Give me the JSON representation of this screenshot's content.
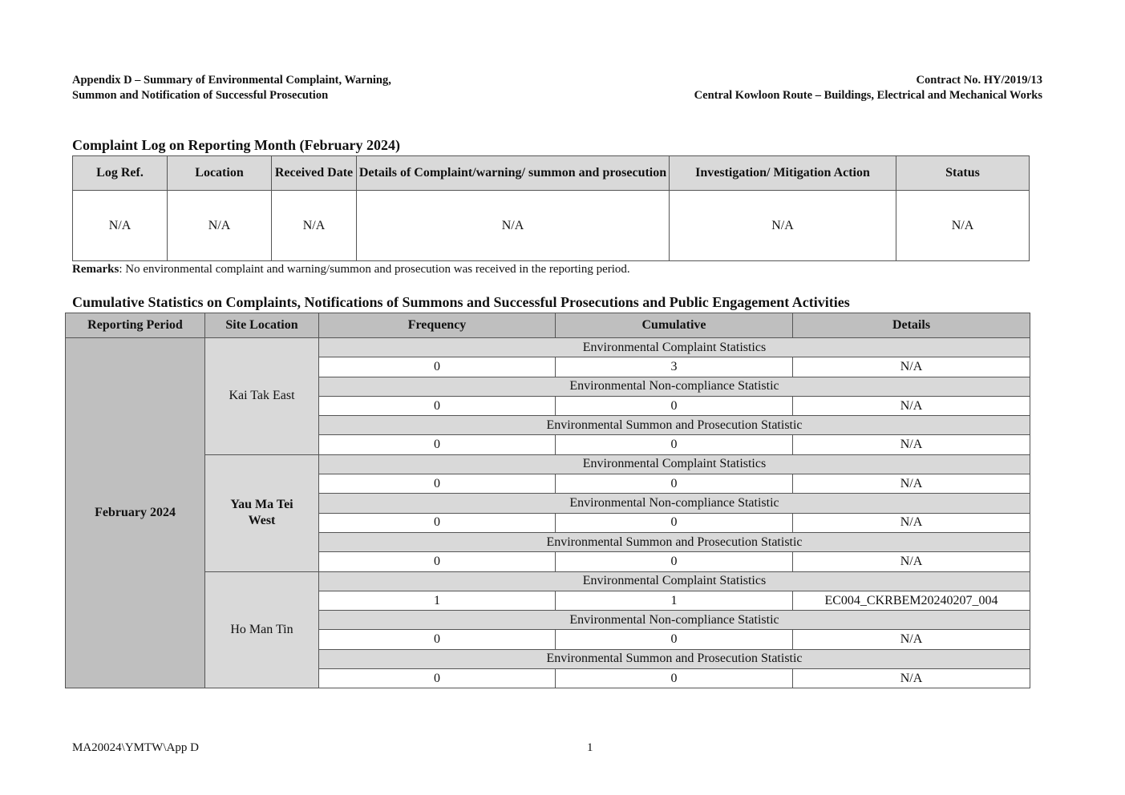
{
  "header": {
    "left_line1": "Appendix D – Summary of Environmental Complaint, Warning,",
    "left_line2": "Summon and Notification of Successful Prosecution",
    "right_line1": "Contract No. HY/2019/13",
    "right_line2": "Central Kowloon Route – Buildings, Electrical and Mechanical Works"
  },
  "complaint_log": {
    "title": "Complaint Log on Reporting Month (February 2024)",
    "columns": [
      "Log Ref.",
      "Location",
      "Received Date",
      "Details of Complaint/warning/ summon and prosecution",
      "Investigation/ Mitigation Action",
      "Status"
    ],
    "row": [
      "N/A",
      "N/A",
      "N/A",
      "N/A",
      "N/A",
      "N/A"
    ],
    "remarks_label": "Remarks",
    "remarks_text": ": No environmental complaint and warning/summon and prosecution was received in the reporting period."
  },
  "cumulative": {
    "title": "Cumulative Statistics on Complaints, Notifications of Summons and Successful Prosecutions and Public Engagement Activities",
    "columns": [
      "Reporting Period",
      "Site Location",
      "Frequency",
      "Cumulative",
      "Details"
    ],
    "period": "February 2024",
    "sites": [
      {
        "name": "Kai Tak East",
        "bold": false,
        "groups": [
          {
            "category": "Environmental Complaint Statistics",
            "values": [
              "0",
              "3",
              "N/A"
            ]
          },
          {
            "category": "Environmental Non-compliance Statistic",
            "values": [
              "0",
              "0",
              "N/A"
            ]
          },
          {
            "category": "Environmental Summon and Prosecution Statistic",
            "values": [
              "0",
              "0",
              "N/A"
            ]
          }
        ]
      },
      {
        "name": "Yau Ma Tei West",
        "bold": true,
        "groups": [
          {
            "category": "Environmental Complaint Statistics",
            "values": [
              "0",
              "0",
              "N/A"
            ]
          },
          {
            "category": "Environmental Non-compliance Statistic",
            "values": [
              "0",
              "0",
              "N/A"
            ]
          },
          {
            "category": "Environmental Summon and Prosecution Statistic",
            "values": [
              "0",
              "0",
              "N/A"
            ]
          }
        ]
      },
      {
        "name": "Ho Man Tin",
        "bold": false,
        "groups": [
          {
            "category": "Environmental Complaint Statistics",
            "values": [
              "1",
              "1",
              "EC004_CKRBEM20240207_004"
            ]
          },
          {
            "category": "Environmental Non-compliance Statistic",
            "values": [
              "0",
              "0",
              "N/A"
            ]
          },
          {
            "category": "Environmental Summon and Prosecution Statistic",
            "values": [
              "0",
              "0",
              "N/A"
            ]
          }
        ]
      }
    ]
  },
  "footer": {
    "doc_ref": "MA20024\\YMTW\\App D",
    "page_number": "1"
  }
}
